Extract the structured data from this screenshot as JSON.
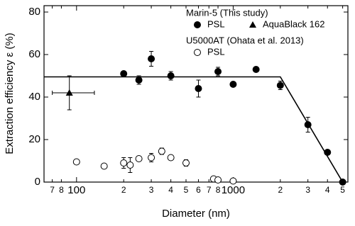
{
  "chart_data": {
    "type": "scatter",
    "xlabel": "Diameter (nm)",
    "ylabel": "Extraction efficiency ε (%)",
    "xscale": "log",
    "xlim": [
      62,
      5400
    ],
    "ylim": [
      0,
      83
    ],
    "yticks": [
      0,
      20,
      40,
      60,
      80
    ],
    "xticks": [
      {
        "value": 70,
        "label": "7"
      },
      {
        "value": 80,
        "label": "8"
      },
      {
        "value": 100,
        "label": "100"
      },
      {
        "value": 200,
        "label": "2"
      },
      {
        "value": 300,
        "label": "3"
      },
      {
        "value": 400,
        "label": "4"
      },
      {
        "value": 500,
        "label": "5"
      },
      {
        "value": 600,
        "label": "6"
      },
      {
        "value": 700,
        "label": "7"
      },
      {
        "value": 800,
        "label": "8"
      },
      {
        "value": 1000,
        "label": "1000"
      },
      {
        "value": 2000,
        "label": "2"
      },
      {
        "value": 3000,
        "label": "3"
      },
      {
        "value": 4000,
        "label": "4"
      },
      {
        "value": 5000,
        "label": "5"
      }
    ],
    "legend_groups": [
      "Marin-5 (This study)",
      "U5000AT (Ohata et al. 2013)"
    ],
    "series": [
      {
        "name": "PSL",
        "marker": "circle-filled",
        "color": "#000",
        "group": 0,
        "x": [
          200,
          250,
          300,
          400,
          600,
          800,
          1000,
          1400,
          2000,
          3000,
          4000,
          5000
        ],
        "values": [
          51,
          48,
          58,
          50,
          44,
          52,
          46,
          53,
          45.5,
          27,
          14,
          0
        ],
        "yerr": [
          1,
          2,
          3.5,
          2,
          4,
          2,
          1,
          1,
          2,
          3.5,
          1,
          1
        ]
      },
      {
        "name": "AquaBlack 162",
        "marker": "triangle-filled",
        "color": "#000",
        "group": 0,
        "x": [
          90
        ],
        "values": [
          42
        ],
        "yerr": [
          8
        ],
        "xerr_minus": [
          20
        ],
        "xerr_plus": [
          40
        ]
      },
      {
        "name": "PSL",
        "marker": "circle-open",
        "color": "#000",
        "group": 1,
        "x": [
          100,
          150,
          200,
          220,
          250,
          300,
          350,
          400,
          500,
          750,
          800,
          1000
        ],
        "values": [
          9.5,
          7.5,
          9,
          8,
          11,
          11.5,
          14.5,
          11.5,
          9,
          1.5,
          1,
          0.5
        ],
        "yerr": [
          0.5,
          0.5,
          2.5,
          3.5,
          1,
          2,
          1.5,
          1,
          1.5,
          0.5,
          0.5,
          0.5
        ]
      },
      {
        "marker": "line",
        "color": "#000",
        "x": [
          62,
          2000,
          5000
        ],
        "values": [
          49.5,
          49.5,
          0
        ]
      }
    ]
  }
}
